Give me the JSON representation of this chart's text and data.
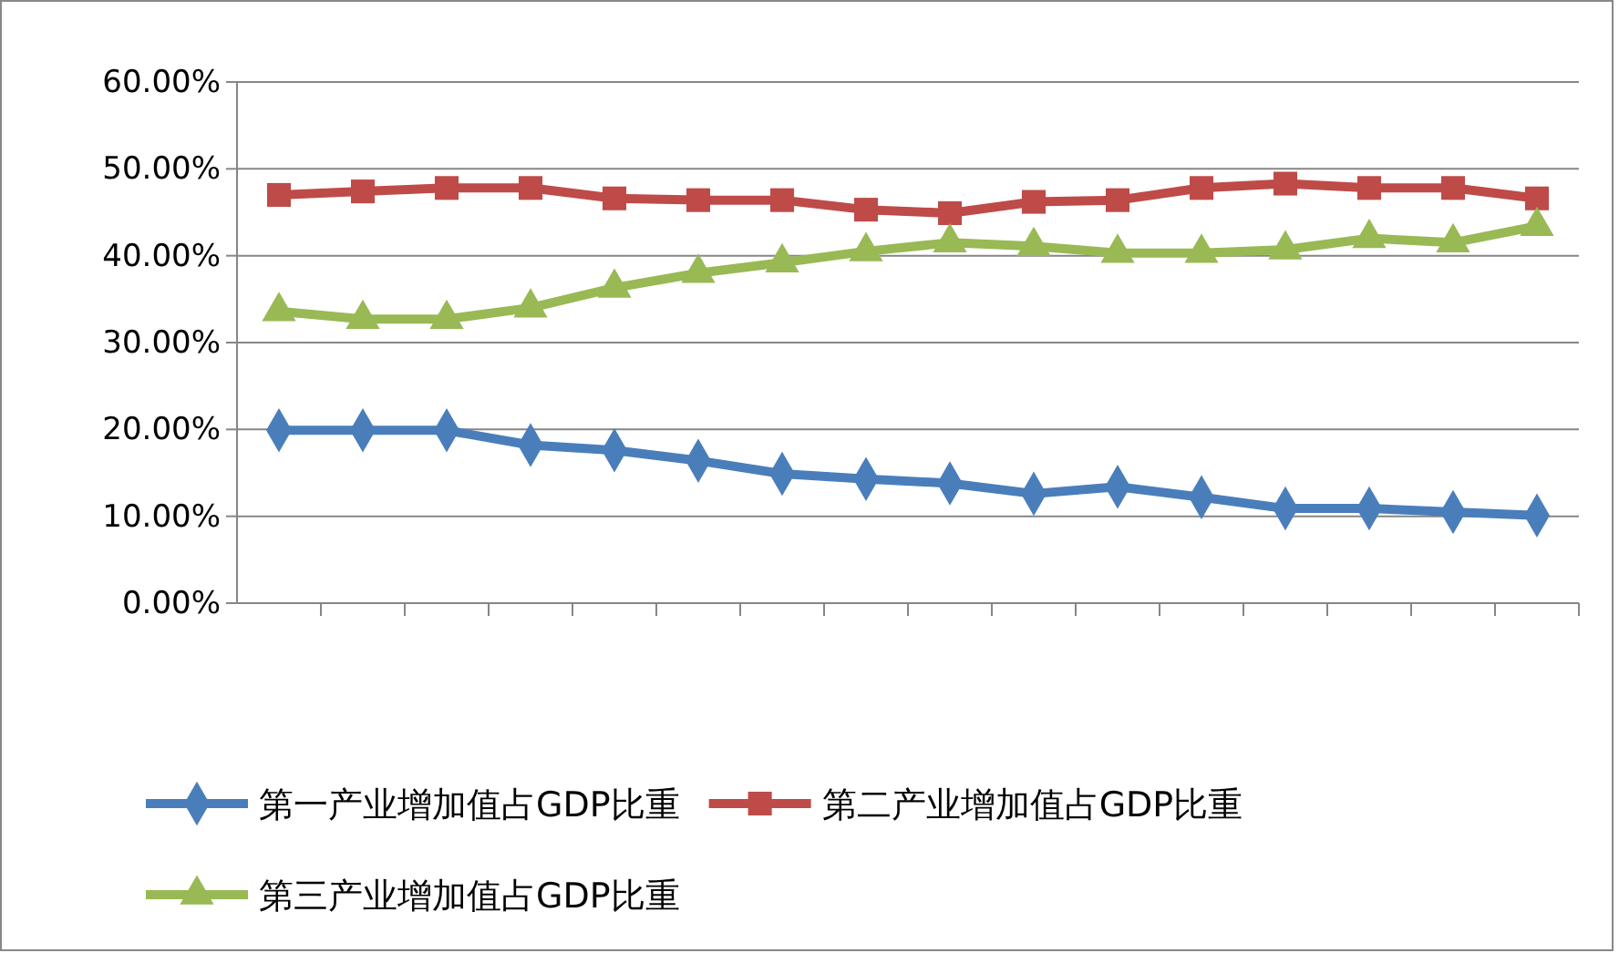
{
  "chart_data": {
    "type": "line",
    "categories": [
      null,
      null,
      null,
      null,
      null,
      null,
      null,
      null,
      null,
      null,
      null,
      null,
      null,
      null,
      null,
      null
    ],
    "series": [
      {
        "name": "第一产业增加值占GDP比重",
        "color": "#4a7ebb",
        "marker": "diamond",
        "values": [
          19.9,
          19.9,
          19.9,
          18.2,
          17.6,
          16.4,
          14.9,
          14.3,
          13.8,
          12.6,
          13.4,
          12.2,
          10.9,
          10.9,
          10.5,
          10.1
        ]
      },
      {
        "name": "第二产业增加值占GDP比重",
        "color": "#be4b48",
        "marker": "square",
        "values": [
          47.0,
          47.4,
          47.8,
          47.8,
          46.6,
          46.4,
          46.4,
          45.3,
          44.9,
          46.2,
          46.4,
          47.8,
          48.3,
          47.8,
          47.8,
          46.6
        ]
      },
      {
        "name": "第三产业增加值占GDP比重",
        "color": "#98b954",
        "marker": "triangle",
        "values": [
          33.6,
          32.7,
          32.7,
          34.0,
          36.3,
          38.0,
          39.2,
          40.5,
          41.5,
          41.1,
          40.3,
          40.3,
          40.7,
          42.0,
          41.5,
          43.4
        ]
      }
    ],
    "ylim": [
      0,
      60
    ],
    "yticks": [
      {
        "value": 0,
        "label": "0.00%"
      },
      {
        "value": 10,
        "label": "10.00%"
      },
      {
        "value": 20,
        "label": "20.00%"
      },
      {
        "value": 30,
        "label": "30.00%"
      },
      {
        "value": 40,
        "label": "40.00%"
      },
      {
        "value": 50,
        "label": "50.00%"
      },
      {
        "value": 60,
        "label": "60.00%"
      }
    ],
    "grid": "y",
    "legend": "bottom",
    "line_style": "solid"
  }
}
